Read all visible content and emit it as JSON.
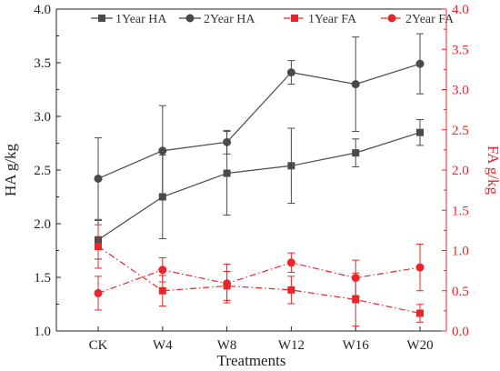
{
  "chart_data": {
    "type": "line",
    "xlabel": "Treatments",
    "categories": [
      "CK",
      "W4",
      "W8",
      "W12",
      "W16",
      "W20"
    ],
    "axes": {
      "left": {
        "label": "HA g/kg",
        "ylim": [
          1.0,
          4.0
        ],
        "ticks": [
          "1.0",
          "1.5",
          "2.0",
          "2.5",
          "3.0",
          "3.5",
          "4.0"
        ],
        "color": "#333333"
      },
      "right": {
        "label": "FA g/kg",
        "ylim": [
          0.0,
          4.0
        ],
        "ticks": [
          "0.0",
          "0.5",
          "1.0",
          "1.5",
          "2.0",
          "2.5",
          "3.0",
          "3.5",
          "4.0"
        ],
        "color": "#e8262a"
      }
    },
    "legend_position": "top-center",
    "grid": false,
    "series": [
      {
        "name": "1Year HA",
        "axis": "left",
        "color": "#4a4a4a",
        "marker": "square",
        "dash": "solid",
        "values": [
          1.85,
          2.25,
          2.47,
          2.54,
          2.66,
          2.85
        ],
        "errors": [
          0.18,
          0.39,
          0.39,
          0.35,
          0.13,
          0.12
        ]
      },
      {
        "name": "2Year HA",
        "axis": "left",
        "color": "#4a4a4a",
        "marker": "circle",
        "dash": "solid",
        "values": [
          2.42,
          2.68,
          2.76,
          3.41,
          3.3,
          3.49
        ],
        "errors": [
          0.38,
          0.42,
          0.11,
          0.11,
          0.44,
          0.28
        ]
      },
      {
        "name": "1Year FA",
        "axis": "right",
        "color": "#e8262a",
        "marker": "square",
        "dash": "dashdot",
        "values": [
          1.05,
          0.5,
          0.56,
          0.51,
          0.39,
          0.22
        ],
        "errors": [
          0.27,
          0.19,
          0.18,
          0.17,
          0.33,
          0.11
        ]
      },
      {
        "name": "2Year FA",
        "axis": "right",
        "color": "#e8262a",
        "marker": "circle",
        "dash": "dashdot",
        "values": [
          0.47,
          0.76,
          0.59,
          0.85,
          0.66,
          0.79
        ],
        "errors": [
          0.21,
          0.15,
          0.24,
          0.12,
          0.22,
          0.29
        ]
      }
    ]
  }
}
